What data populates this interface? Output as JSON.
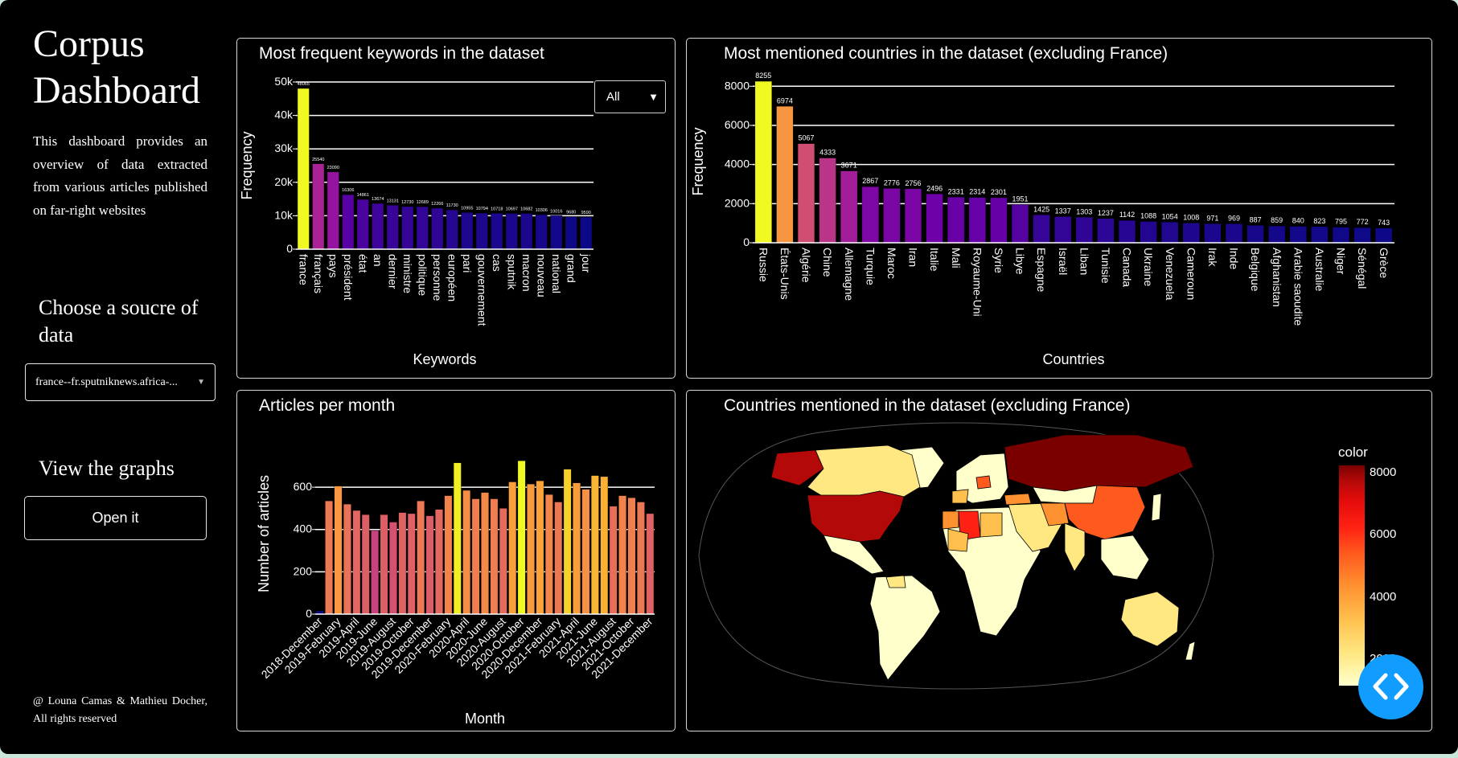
{
  "sidebar": {
    "title": "Corpus Dashboard",
    "description": "This dashboard provides an overview of data extracted from various articles published on far-right websites",
    "source_label": "Choose a soucre of data",
    "source_value": "france--fr.sputniknews.africa-...",
    "view_label": "View the graphs",
    "open_button": "Open it",
    "footer": "@ Louna Camas & Mathieu Docher, All rights reserved"
  },
  "keywords_panel": {
    "title": "Most frequent keywords in the dataset",
    "filter_value": "All"
  },
  "countries_panel": {
    "title": "Most mentioned countries in the dataset (excluding France)"
  },
  "months_panel": {
    "title": "Articles per month"
  },
  "map_panel": {
    "title": "Countries mentioned in the dataset (excluding France)",
    "colorbar_title": "color",
    "colorbar_ticks": [
      "8000",
      "6000",
      "4000",
      "2000"
    ]
  },
  "chart_data": [
    {
      "type": "bar",
      "id": "keywords",
      "xlabel": "Keywords",
      "ylabel": "Frequency",
      "ylim": [
        0,
        50000
      ],
      "yticks": [
        0,
        10000,
        20000,
        30000,
        40000,
        50000
      ],
      "ytick_labels": [
        "0",
        "10k",
        "20k",
        "30k",
        "40k",
        "50k"
      ],
      "categories": [
        "france",
        "français",
        "pays",
        "président",
        "état",
        "an",
        "dernier",
        "ministre",
        "politique",
        "personne",
        "européen",
        "pari",
        "gouvernement",
        "cas",
        "sputnik",
        "macron",
        "nouveau",
        "national",
        "grand",
        "jour"
      ],
      "values": [
        48065,
        25540,
        23090,
        16306,
        14861,
        13674,
        13131,
        12730,
        12689,
        12266,
        11730,
        10955,
        10794,
        10718,
        10697,
        10682,
        10306,
        10016,
        9680,
        9590
      ],
      "data_labels": [
        "48065",
        "25540",
        "23090",
        "16306",
        "14861",
        "13674",
        "13131",
        "12730",
        "12689",
        "12266",
        "11730",
        "10955",
        "10794",
        "10718",
        "10697",
        "10682",
        "10306",
        "10016",
        "9680",
        "9590"
      ],
      "grid": true
    },
    {
      "type": "bar",
      "id": "countries",
      "xlabel": "Countries",
      "ylabel": "Frequency",
      "ylim": [
        0,
        8300
      ],
      "yticks": [
        0,
        2000,
        4000,
        6000,
        8000
      ],
      "ytick_labels": [
        "0",
        "2000",
        "4000",
        "6000",
        "8000"
      ],
      "categories": [
        "Russie",
        "États-Unis",
        "Algérie",
        "Chine",
        "Allemagne",
        "Turquie",
        "Maroc",
        "Iran",
        "Italie",
        "Mali",
        "Royaume-Uni",
        "Syrie",
        "Libye",
        "Espagne",
        "Israël",
        "Liban",
        "Tunisie",
        "Canada",
        "Ukraine",
        "Venezuela",
        "Cameroun",
        "Irak",
        "Inde",
        "Belgique",
        "Afghanistan",
        "Arabie saoudite",
        "Australie",
        "Niger",
        "Sénégal",
        "Grèce"
      ],
      "values": [
        8255,
        6974,
        5067,
        4333,
        3671,
        2867,
        2776,
        2756,
        2496,
        2331,
        2314,
        2301,
        1951,
        1425,
        1337,
        1303,
        1237,
        1142,
        1088,
        1054,
        1008,
        971,
        969,
        887,
        859,
        840,
        823,
        795,
        772,
        743
      ],
      "data_labels": [
        "8255",
        "6974",
        "5067",
        "4333",
        "3671",
        "2867",
        "2776",
        "2756",
        "2496",
        "2331",
        "2314",
        "2301",
        "1951",
        "1425",
        "1337",
        "1303",
        "1237",
        "1142",
        "1088",
        "1054",
        "1008",
        "971",
        "969",
        "887",
        "859",
        "840",
        "823",
        "795",
        "772",
        "743"
      ],
      "grid": true
    },
    {
      "type": "bar",
      "id": "months",
      "xlabel": "Month",
      "ylabel": "Number of articles",
      "ylim": [
        0,
        760
      ],
      "yticks": [
        0,
        200,
        400,
        600
      ],
      "ytick_labels": [
        "0",
        "200",
        "400",
        "600"
      ],
      "categories": [
        "2018-December",
        "2019-January",
        "2019-February",
        "2019-March",
        "2019-April",
        "2019-May",
        "2019-June",
        "2019-July",
        "2019-August",
        "2019-September",
        "2019-October",
        "2019-November",
        "2019-December",
        "2020-January",
        "2020-February",
        "2020-March",
        "2020-April",
        "2020-May",
        "2020-June",
        "2020-July",
        "2020-August",
        "2020-September",
        "2020-October",
        "2020-November",
        "2020-December",
        "2021-January",
        "2021-February",
        "2021-March",
        "2021-April",
        "2021-May",
        "2021-June",
        "2021-July",
        "2021-August",
        "2021-September",
        "2021-October",
        "2021-November",
        "2021-December"
      ],
      "tick_labels_shown": [
        "2018-December",
        "2019-February",
        "2019-April",
        "2019-June",
        "2019-August",
        "2019-October",
        "2019-December",
        "2020-February",
        "2020-April",
        "2020-June",
        "2020-August",
        "2020-October",
        "2020-December",
        "2021-February",
        "2021-April",
        "2021-June",
        "2021-August",
        "2021-October",
        "2021-December"
      ],
      "values": [
        15,
        535,
        605,
        520,
        490,
        470,
        395,
        470,
        435,
        480,
        475,
        535,
        465,
        495,
        560,
        715,
        585,
        545,
        575,
        545,
        500,
        625,
        725,
        615,
        630,
        565,
        530,
        685,
        620,
        590,
        655,
        650,
        510,
        560,
        550,
        530,
        475
      ],
      "grid": true
    },
    {
      "type": "choropleth",
      "id": "map",
      "colorbar": {
        "title": "color",
        "range": [
          0,
          8300
        ],
        "ticks": [
          2000,
          4000,
          6000,
          8000
        ]
      },
      "colorscale": [
        "#ffffcc",
        "#ffe781",
        "#ffc04d",
        "#ff9230",
        "#ff5a1e",
        "#ff2113",
        "#e30b0b",
        "#b40909",
        "#7a0000"
      ],
      "regions": [
        {
          "name": "Russie",
          "value": 8255
        },
        {
          "name": "États-Unis",
          "value": 6974
        },
        {
          "name": "Algérie",
          "value": 5067
        },
        {
          "name": "Chine",
          "value": 4333
        },
        {
          "name": "Canada",
          "value": 1142
        },
        {
          "name": "Australie",
          "value": 823
        },
        {
          "name": "Turquie",
          "value": 2867
        },
        {
          "name": "Iran",
          "value": 2756
        },
        {
          "name": "Inde",
          "value": 969
        }
      ]
    }
  ],
  "colors": {
    "scale_low": "#0d0887",
    "scale_mid": "#cc4778",
    "scale_high": "#f0f921",
    "panel_border": "#d8d8d8",
    "accent": "#119dff"
  }
}
